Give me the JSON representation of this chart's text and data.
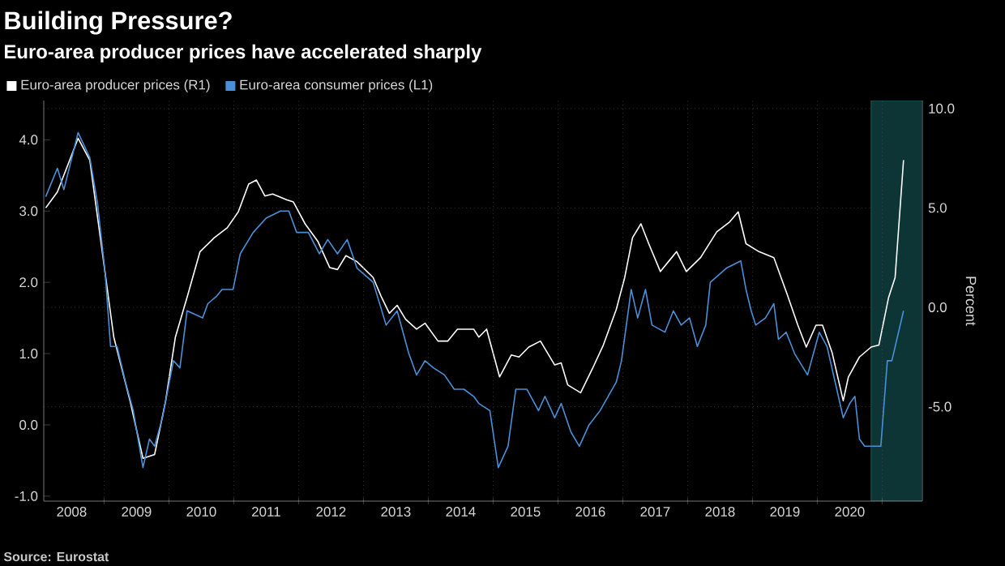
{
  "chart_data": {
    "type": "line",
    "title": "Building Pressure?",
    "subtitle": "Euro-area producer prices have accelerated sharply",
    "y2label": "Percent",
    "annotations": [
      "Source: Eurostat"
    ],
    "series": [
      {
        "name": "Euro-area producer prices (R1)",
        "color": "#ffffff",
        "axis": "y2",
        "x": [
          2008.1,
          2008.28,
          2008.6,
          2008.78,
          2008.98,
          2009.15,
          2009.4,
          2009.6,
          2009.78,
          2009.95,
          2010.1,
          2010.28,
          2010.48,
          2010.7,
          2010.9,
          2011.07,
          2011.23,
          2011.35,
          2011.48,
          2011.6,
          2011.82,
          2011.92,
          2012.1,
          2012.3,
          2012.48,
          2012.6,
          2012.73,
          2012.9,
          2013.15,
          2013.28,
          2013.4,
          2013.52,
          2013.65,
          2013.82,
          2013.95,
          2014.15,
          2014.3,
          2014.45,
          2014.7,
          2014.78,
          2014.9,
          2015.1,
          2015.28,
          2015.4,
          2015.55,
          2015.73,
          2015.95,
          2016.05,
          2016.15,
          2016.35,
          2016.53,
          2016.7,
          2016.9,
          2017.03,
          2017.15,
          2017.28,
          2017.4,
          2017.58,
          2017.73,
          2017.83,
          2017.98,
          2018.2,
          2018.45,
          2018.65,
          2018.78,
          2018.9,
          2019.1,
          2019.33,
          2019.53,
          2019.7,
          2019.83,
          2019.98,
          2020.08,
          2020.23,
          2020.4,
          2020.48,
          2020.65,
          2020.83,
          2020.95,
          2021.1,
          2021.2,
          2021.33
        ],
        "values": [
          5.0,
          5.8,
          8.5,
          7.4,
          2.6,
          -1.5,
          -4.7,
          -7.6,
          -7.4,
          -4.7,
          -1.5,
          0.5,
          2.8,
          3.5,
          4.0,
          4.8,
          6.2,
          6.4,
          5.6,
          5.7,
          5.4,
          5.3,
          4.2,
          3.3,
          2.0,
          1.9,
          2.6,
          2.3,
          1.5,
          0.5,
          -0.3,
          0.1,
          -0.6,
          -1.1,
          -0.8,
          -1.7,
          -1.7,
          -1.1,
          -1.1,
          -1.5,
          -1.1,
          -3.5,
          -2.4,
          -2.5,
          -2.0,
          -1.7,
          -2.9,
          -2.8,
          -3.9,
          -4.3,
          -3.1,
          -1.9,
          -0.1,
          1.5,
          3.5,
          4.2,
          3.2,
          1.8,
          2.4,
          2.8,
          1.8,
          2.5,
          3.8,
          4.3,
          4.8,
          3.2,
          2.8,
          2.5,
          0.7,
          -0.9,
          -2.0,
          -0.9,
          -0.9,
          -2.3,
          -4.7,
          -3.5,
          -2.5,
          -2.0,
          -1.9,
          0.5,
          1.5,
          7.4
        ]
      },
      {
        "name": "Euro-area consumer prices (L1)",
        "color": "#4a90d9",
        "x": [
          2008.1,
          2008.28,
          2008.38,
          2008.6,
          2008.78,
          2008.9,
          2009.02,
          2009.1,
          2009.2,
          2009.33,
          2009.45,
          2009.6,
          2009.7,
          2009.78,
          2009.9,
          2010.07,
          2010.17,
          2010.28,
          2010.52,
          2010.6,
          2010.73,
          2010.82,
          2010.99,
          2011.1,
          2011.3,
          2011.5,
          2011.72,
          2011.85,
          2011.97,
          2012.15,
          2012.32,
          2012.45,
          2012.6,
          2012.75,
          2012.9,
          2013.15,
          2013.35,
          2013.52,
          2013.7,
          2013.82,
          2013.95,
          2014.08,
          2014.25,
          2014.4,
          2014.55,
          2014.7,
          2014.78,
          2014.95,
          2015.08,
          2015.23,
          2015.35,
          2015.52,
          2015.7,
          2015.8,
          2015.95,
          2016.05,
          2016.2,
          2016.33,
          2016.48,
          2016.65,
          2016.9,
          2016.98,
          2017.13,
          2017.23,
          2017.35,
          2017.45,
          2017.65,
          2017.78,
          2017.9,
          2018.03,
          2018.15,
          2018.28,
          2018.35,
          2018.6,
          2018.82,
          2018.9,
          2018.98,
          2019.05,
          2019.2,
          2019.33,
          2019.4,
          2019.52,
          2019.65,
          2019.85,
          2020.03,
          2020.15,
          2020.4,
          2020.5,
          2020.58,
          2020.65,
          2020.73,
          2020.98,
          2021.08,
          2021.15,
          2021.33
        ],
        "values": [
          3.2,
          3.6,
          3.3,
          4.1,
          3.75,
          3.1,
          2.1,
          1.1,
          1.1,
          0.6,
          0.2,
          -0.6,
          -0.2,
          -0.3,
          0.1,
          0.9,
          0.8,
          1.6,
          1.5,
          1.7,
          1.8,
          1.9,
          1.9,
          2.4,
          2.7,
          2.9,
          3.0,
          3.0,
          2.7,
          2.7,
          2.4,
          2.6,
          2.4,
          2.6,
          2.2,
          2.0,
          1.4,
          1.6,
          1.0,
          0.7,
          0.9,
          0.8,
          0.7,
          0.5,
          0.5,
          0.4,
          0.3,
          0.2,
          -0.6,
          -0.3,
          0.5,
          0.5,
          0.2,
          0.4,
          0.1,
          0.3,
          -0.1,
          -0.3,
          0.0,
          0.2,
          0.6,
          0.9,
          1.9,
          1.5,
          1.9,
          1.4,
          1.3,
          1.6,
          1.4,
          1.5,
          1.1,
          1.4,
          2.0,
          2.2,
          2.3,
          1.9,
          1.6,
          1.4,
          1.5,
          1.7,
          1.2,
          1.3,
          1.0,
          0.7,
          1.3,
          1.1,
          0.1,
          0.3,
          0.4,
          -0.2,
          -0.3,
          -0.3,
          0.9,
          0.9,
          1.6
        ]
      }
    ],
    "xlim": [
      2008.07,
      2021.62
    ],
    "xticks": [
      {
        "value": 2009,
        "label": null
      },
      {
        "value": 2010,
        "label": null
      },
      {
        "value": 2011,
        "label": null
      },
      {
        "value": 2012,
        "label": null
      },
      {
        "value": 2013,
        "label": null
      },
      {
        "value": 2014,
        "label": null
      },
      {
        "value": 2015,
        "label": null
      },
      {
        "value": 2016,
        "label": null
      },
      {
        "value": 2017,
        "label": null
      },
      {
        "value": 2018,
        "label": null
      },
      {
        "value": 2019,
        "label": null
      },
      {
        "value": 2020,
        "label": null
      },
      {
        "value": 2021,
        "label": null
      },
      {
        "value": 2008.5,
        "label": "2008"
      },
      {
        "value": 2009.5,
        "label": "2009"
      },
      {
        "value": 2010.5,
        "label": "2010"
      },
      {
        "value": 2011.5,
        "label": "2011"
      },
      {
        "value": 2012.5,
        "label": "2012"
      },
      {
        "value": 2013.5,
        "label": "2013"
      },
      {
        "value": 2014.5,
        "label": "2014"
      },
      {
        "value": 2015.5,
        "label": "2015"
      },
      {
        "value": 2016.5,
        "label": "2016"
      },
      {
        "value": 2017.5,
        "label": "2017"
      },
      {
        "value": 2018.5,
        "label": "2018"
      },
      {
        "value": 2019.5,
        "label": "2019"
      },
      {
        "value": 2020.5,
        "label": "2020"
      }
    ],
    "ylim": [
      -1.07,
      4.55
    ],
    "yticks": [
      {
        "value": -1,
        "label": "-1.0"
      },
      {
        "value": 0,
        "label": "0.0"
      },
      {
        "value": 1,
        "label": "1.0"
      },
      {
        "value": 2,
        "label": "2.0"
      },
      {
        "value": 3,
        "label": "3.0"
      },
      {
        "value": 4,
        "label": "4.0"
      }
    ],
    "y2lim": [
      -9.75,
      10.4
    ],
    "y2ticks": [
      {
        "value": -5,
        "label": "-5.0"
      },
      {
        "value": 0,
        "label": "0.0"
      },
      {
        "value": 5,
        "label": "5.0"
      },
      {
        "value": 10,
        "label": "10.0"
      }
    ],
    "bands": [
      {
        "axis": "x",
        "from": 2020.83,
        "to": 2021.62,
        "color": "#0e3536"
      }
    ],
    "grid": true,
    "legend": "top left"
  }
}
